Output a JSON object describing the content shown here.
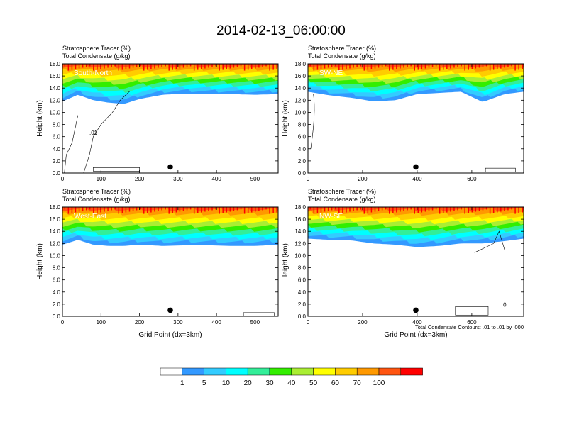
{
  "title": "2014-02-13_06:00:00",
  "color_levels": [
    {
      "label": "",
      "color": "#ffffff"
    },
    {
      "label": "1",
      "color": "#3399ff"
    },
    {
      "label": "5",
      "color": "#33ccff"
    },
    {
      "label": "10",
      "color": "#00ffff"
    },
    {
      "label": "20",
      "color": "#33ee99"
    },
    {
      "label": "30",
      "color": "#33ee00"
    },
    {
      "label": "40",
      "color": "#aaee33"
    },
    {
      "label": "50",
      "color": "#ffff00"
    },
    {
      "label": "60",
      "color": "#ffcc00"
    },
    {
      "label": "70",
      "color": "#ff9900"
    },
    {
      "label": "100",
      "color": "#ff5511"
    },
    {
      "label": "",
      "color": "#ff0000"
    }
  ],
  "chart_data": [
    {
      "type": "heatmap",
      "panel_label": "South-North",
      "subtitle_lines": [
        "Stratosphere Tracer   (%)",
        "Total Condensate   (g/kg)"
      ],
      "ylabel": "Height (km)",
      "xlabel": "",
      "xlim": [
        0,
        560
      ],
      "ylim": [
        0,
        18
      ],
      "xticks": [
        0,
        100,
        200,
        300,
        400,
        500
      ],
      "yticks": [
        "0.0",
        "2.0",
        "4.0",
        "6.0",
        "8.0",
        "10.0",
        "12.0",
        "14.0",
        "16.0",
        "18.0"
      ],
      "marker": {
        "x": 280,
        "y": 1.0
      },
      "tracer_profile": {
        "x": [
          0,
          40,
          80,
          120,
          160,
          200,
          260,
          320,
          380,
          440,
          500,
          560
        ],
        "bottom_km": [
          11.8,
          12.9,
          12.0,
          11.6,
          11.4,
          12.2,
          12.9,
          13.1,
          13.0,
          13.0,
          12.9,
          13.0
        ]
      },
      "contour_label": ".01",
      "note": ""
    },
    {
      "type": "heatmap",
      "panel_label": "SW-NE",
      "subtitle_lines": [
        "Stratosphere Tracer   (%)",
        "Total Condensate   (g/kg)"
      ],
      "ylabel": "Height (km)",
      "xlabel": "",
      "xlim": [
        0,
        790
      ],
      "ylim": [
        0,
        18
      ],
      "xticks": [
        0,
        200,
        400,
        600
      ],
      "yticks": [
        "0.0",
        "2.0",
        "4.0",
        "6.0",
        "8.0",
        "10.0",
        "12.0",
        "14.0",
        "16.0",
        "18.0"
      ],
      "marker": {
        "x": 395,
        "y": 1.0
      },
      "tracer_profile": {
        "x": [
          0,
          80,
          160,
          240,
          320,
          400,
          480,
          560,
          640,
          720,
          790
        ],
        "bottom_km": [
          13.4,
          12.8,
          12.4,
          11.8,
          12.0,
          13.0,
          13.2,
          13.4,
          11.7,
          13.0,
          13.4
        ]
      },
      "contour_label": "",
      "note": ""
    },
    {
      "type": "heatmap",
      "panel_label": "West-East",
      "subtitle_lines": [
        "Stratosphere Tracer   (%)",
        "Total Condensate   (g/kg)"
      ],
      "ylabel": "Height (km)",
      "xlabel": "Grid Point (dx=3km)",
      "xlim": [
        0,
        560
      ],
      "ylim": [
        0,
        18
      ],
      "xticks": [
        0,
        100,
        200,
        300,
        400,
        500
      ],
      "yticks": [
        "0.0",
        "2.0",
        "4.0",
        "6.0",
        "8.0",
        "10.0",
        "12.0",
        "14.0",
        "16.0",
        "18.0"
      ],
      "marker": {
        "x": 280,
        "y": 1.0
      },
      "tracer_profile": {
        "x": [
          0,
          40,
          80,
          120,
          160,
          200,
          260,
          320,
          380,
          440,
          500,
          560
        ],
        "bottom_km": [
          11.8,
          12.6,
          11.8,
          11.6,
          11.6,
          11.8,
          11.6,
          11.7,
          11.7,
          11.6,
          11.6,
          11.8
        ]
      },
      "contour_label": "",
      "note": ""
    },
    {
      "type": "heatmap",
      "panel_label": "NW-SE",
      "subtitle_lines": [
        "Stratosphere Tracer   (%)",
        "Total Condensate   (g/kg)"
      ],
      "ylabel": "Height (km)",
      "xlabel": "Grid Point (dx=3km)",
      "xlim": [
        0,
        790
      ],
      "ylim": [
        0,
        18
      ],
      "xticks": [
        0,
        200,
        400,
        600
      ],
      "yticks": [
        "0.0",
        "2.0",
        "4.0",
        "6.0",
        "8.0",
        "10.0",
        "12.0",
        "14.0",
        "16.0",
        "18.0"
      ],
      "marker": {
        "x": 395,
        "y": 1.0
      },
      "tracer_profile": {
        "x": [
          0,
          80,
          160,
          240,
          320,
          400,
          480,
          560,
          640,
          720,
          790
        ],
        "bottom_km": [
          12.8,
          12.6,
          12.5,
          12.0,
          11.8,
          11.4,
          11.6,
          12.0,
          12.0,
          12.4,
          12.8
        ]
      },
      "contour_label": "0",
      "note": "Total Condensate Contours: .01 to .01 by .000"
    }
  ]
}
